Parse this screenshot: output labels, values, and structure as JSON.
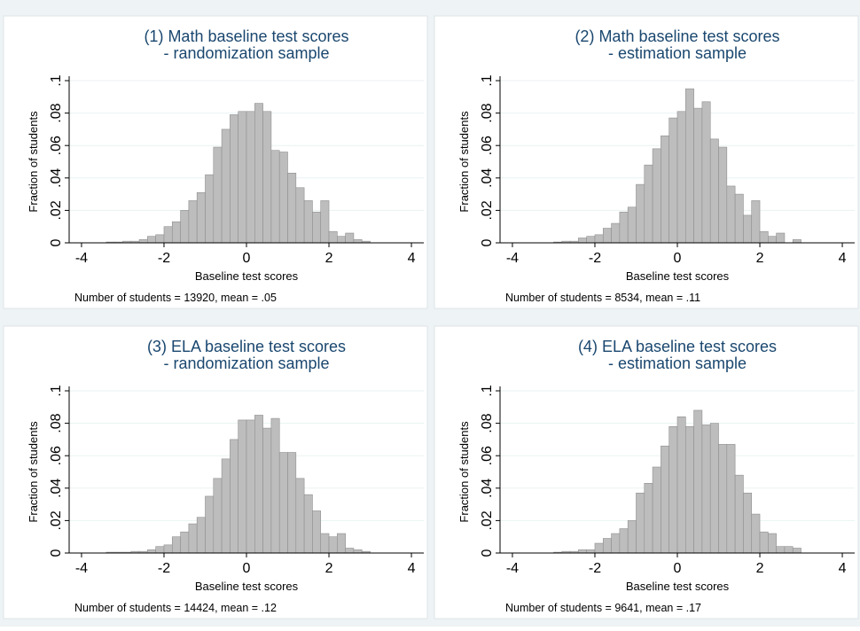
{
  "chart_data": [
    {
      "type": "histogram",
      "title": "(1) Math baseline test scores",
      "subtitle": "- randomization sample",
      "x_label": "Baseline test scores",
      "y_label": "Fraction of students",
      "note": "Number of students = 13920, mean = .05",
      "color": "#bdbdbd",
      "bins": [
        -3.4,
        -3.2,
        -3,
        -2.8,
        -2.6,
        -2.4,
        -2.2,
        -2,
        -1.8,
        -1.6,
        -1.4,
        -1.2,
        -1,
        -0.8,
        -0.6,
        -0.4,
        -0.2,
        0,
        0.2,
        0.4,
        0.6,
        0.8,
        1,
        1.2,
        1.4,
        1.6,
        1.8,
        2,
        2.2,
        2.4,
        2.6,
        2.8,
        3
      ],
      "values": [
        0.0005,
        0.0005,
        0.001,
        0.001,
        0.002,
        0.004,
        0.005,
        0.01,
        0.013,
        0.02,
        0.026,
        0.031,
        0.042,
        0.059,
        0.07,
        0.079,
        0.081,
        0.081,
        0.086,
        0.081,
        0.057,
        0.056,
        0.043,
        0.034,
        0.026,
        0.019,
        0.026,
        0.007,
        0.004,
        0.006,
        0.002,
        0.001
      ],
      "xlim": [
        -4.3,
        4.3
      ],
      "ylim": [
        0,
        0.1
      ],
      "xticks": [
        -4,
        -2,
        0,
        2,
        4
      ],
      "yticks": [
        0,
        {
          "value": 0.02,
          "label": ".02"
        },
        {
          "value": 0.04,
          "label": ".04"
        },
        {
          "value": 0.06,
          "label": ".06"
        },
        {
          "value": 0.08,
          "label": ".08"
        },
        {
          "value": 0.1,
          "label": ".1"
        }
      ],
      "grid": true
    },
    {
      "type": "histogram",
      "title": "(2) Math baseline test scores",
      "subtitle": "- estimation sample",
      "x_label": "Baseline test scores",
      "y_label": "Fraction of students",
      "note": "Number of students = 8534, mean = .11",
      "color": "#bdbdbd",
      "bins": [
        -3.4,
        -3.2,
        -3,
        -2.8,
        -2.6,
        -2.4,
        -2.2,
        -2,
        -1.8,
        -1.6,
        -1.4,
        -1.2,
        -1,
        -0.8,
        -0.6,
        -0.4,
        -0.2,
        0,
        0.2,
        0.4,
        0.6,
        0.8,
        1,
        1.2,
        1.4,
        1.6,
        1.8,
        2,
        2.2,
        2.4,
        2.6,
        2.8,
        3
      ],
      "values": [
        0,
        0,
        0.0005,
        0.001,
        0.001,
        0.003,
        0.004,
        0.005,
        0.009,
        0.012,
        0.019,
        0.022,
        0.036,
        0.048,
        0.058,
        0.066,
        0.077,
        0.081,
        0.095,
        0.083,
        0.087,
        0.064,
        0.059,
        0.035,
        0.03,
        0.017,
        0.026,
        0.007,
        0.004,
        0.006,
        0,
        0.002
      ],
      "xlim": [
        -4.3,
        4.3
      ],
      "ylim": [
        0,
        0.1
      ],
      "xticks": [
        -4,
        -2,
        0,
        2,
        4
      ],
      "yticks": [
        0,
        {
          "value": 0.02,
          "label": ".02"
        },
        {
          "value": 0.04,
          "label": ".04"
        },
        {
          "value": 0.06,
          "label": ".06"
        },
        {
          "value": 0.08,
          "label": ".08"
        },
        {
          "value": 0.1,
          "label": ".1"
        }
      ],
      "grid": true
    },
    {
      "type": "histogram",
      "title": "(3) ELA baseline test scores",
      "subtitle": "- randomization sample",
      "x_label": "Baseline test scores",
      "y_label": "Fraction of students",
      "note": "Number of students = 14424, mean = .12",
      "color": "#bdbdbd",
      "bins": [
        -3.4,
        -3.2,
        -3,
        -2.8,
        -2.6,
        -2.4,
        -2.2,
        -2,
        -1.8,
        -1.6,
        -1.4,
        -1.2,
        -1,
        -0.8,
        -0.6,
        -0.4,
        -0.2,
        0,
        0.2,
        0.4,
        0.6,
        0.8,
        1,
        1.2,
        1.4,
        1.6,
        1.8,
        2,
        2.2,
        2.4,
        2.6,
        2.8,
        3
      ],
      "values": [
        0.0005,
        0.0005,
        0.0005,
        0.001,
        0.001,
        0.002,
        0.004,
        0.005,
        0.01,
        0.013,
        0.018,
        0.022,
        0.035,
        0.046,
        0.058,
        0.07,
        0.082,
        0.082,
        0.085,
        0.077,
        0.083,
        0.062,
        0.062,
        0.046,
        0.036,
        0.026,
        0.012,
        0.01,
        0.012,
        0.003,
        0.002,
        0.001
      ],
      "xlim": [
        -4.3,
        4.3
      ],
      "ylim": [
        0,
        0.1
      ],
      "xticks": [
        -4,
        -2,
        0,
        2,
        4
      ],
      "yticks": [
        0,
        {
          "value": 0.02,
          "label": ".02"
        },
        {
          "value": 0.04,
          "label": ".04"
        },
        {
          "value": 0.06,
          "label": ".06"
        },
        {
          "value": 0.08,
          "label": ".08"
        },
        {
          "value": 0.1,
          "label": ".1"
        }
      ],
      "grid": true
    },
    {
      "type": "histogram",
      "title": "(4) ELA baseline test scores",
      "subtitle": "- estimation sample",
      "x_label": "Baseline test scores",
      "y_label": "Fraction of students",
      "note": "Number of students = 9641, mean = .17",
      "color": "#bdbdbd",
      "bins": [
        -3.4,
        -3.2,
        -3,
        -2.8,
        -2.6,
        -2.4,
        -2.2,
        -2,
        -1.8,
        -1.6,
        -1.4,
        -1.2,
        -1,
        -0.8,
        -0.6,
        -0.4,
        -0.2,
        0,
        0.2,
        0.4,
        0.6,
        0.8,
        1,
        1.2,
        1.4,
        1.6,
        1.8,
        2,
        2.2,
        2.4,
        2.6,
        2.8,
        3
      ],
      "values": [
        0,
        0,
        0.0005,
        0.001,
        0.001,
        0.002,
        0.002,
        0.006,
        0.009,
        0.012,
        0.015,
        0.02,
        0.037,
        0.043,
        0.053,
        0.066,
        0.078,
        0.084,
        0.078,
        0.088,
        0.079,
        0.08,
        0.067,
        0.067,
        0.048,
        0.037,
        0.024,
        0.013,
        0.012,
        0.004,
        0.004,
        0.003
      ],
      "xlim": [
        -4.3,
        4.3
      ],
      "ylim": [
        0,
        0.1
      ],
      "xticks": [
        -4,
        -2,
        0,
        2,
        4
      ],
      "yticks": [
        0,
        {
          "value": 0.02,
          "label": ".02"
        },
        {
          "value": 0.04,
          "label": ".04"
        },
        {
          "value": 0.06,
          "label": ".06"
        },
        {
          "value": 0.08,
          "label": ".08"
        },
        {
          "value": 0.1,
          "label": ".1"
        }
      ],
      "grid": true
    }
  ]
}
